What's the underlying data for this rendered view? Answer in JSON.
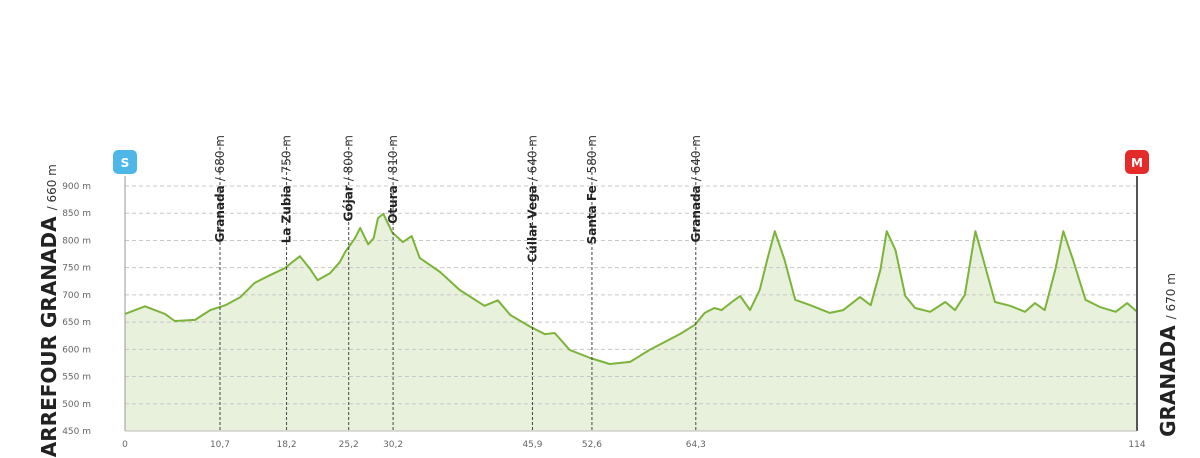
{
  "chart_data": {
    "type": "area",
    "x": [
      0,
      2.25,
      4.5,
      5.6,
      7.9,
      9.6,
      11.3,
      13,
      14.6,
      16.3,
      18,
      18.6,
      19.7,
      20.8,
      21.7,
      23.1,
      24.2,
      24.8,
      25.9,
      26.5,
      27.4,
      28,
      28.5,
      29.1,
      30.1,
      31.3,
      32.3,
      33.2,
      35.5,
      37.7,
      40.5,
      42,
      43.4,
      45.7,
      47.3,
      48.4,
      50.1,
      52.4,
      54.6,
      56.9,
      59.1,
      62.5,
      64.2,
      65.3,
      66.4,
      67.2,
      68.2,
      69.3,
      70.4,
      71.5,
      72.4,
      73.2,
      74.3,
      75.5,
      77.2,
      79.4,
      80.9,
      82.8,
      84,
      85.1,
      85.8,
      86.8,
      87.9,
      89,
      90.7,
      92.4,
      93.5,
      94.6,
      95.8,
      96.7,
      98,
      99.7,
      101.4,
      102.5,
      103.6,
      104.8,
      105.7,
      106.8,
      108.2,
      109.8,
      111.6,
      112.9,
      114
    ],
    "values": [
      665,
      679,
      665,
      652,
      654,
      672,
      681,
      696,
      722,
      736,
      749,
      757,
      771,
      749,
      727,
      740,
      760,
      779,
      804,
      823,
      793,
      804,
      841,
      849,
      815,
      797,
      808,
      768,
      742,
      709,
      680,
      690,
      663,
      641,
      628,
      630,
      599,
      584,
      573,
      577,
      599,
      628,
      645,
      667,
      676,
      672,
      685,
      698,
      672,
      709,
      768,
      817,
      764,
      691,
      681,
      667,
      672,
      696,
      681,
      746,
      817,
      782,
      698,
      676,
      669,
      687,
      672,
      700,
      817,
      764,
      687,
      680,
      669,
      685,
      672,
      746,
      817,
      764,
      691,
      678,
      669,
      685,
      669
    ],
    "color": "#7cb33a",
    "fill": "#e8f1dc",
    "xlim": [
      0,
      114
    ],
    "ylim": [
      450,
      900
    ],
    "xticks": [
      0,
      {
        "value": 10.7,
        "label": "10,7"
      },
      {
        "value": 18.2,
        "label": "18,2"
      },
      {
        "value": 25.2,
        "label": "25,2"
      },
      {
        "value": 30.2,
        "label": "30,2"
      },
      {
        "value": 45.9,
        "label": "45,9"
      },
      {
        "value": 52.6,
        "label": "52,6"
      },
      {
        "value": 64.3,
        "label": "64,3"
      },
      114
    ],
    "yticks": [
      {
        "value": 450,
        "label": "450 m"
      },
      {
        "value": 500,
        "label": "500 m"
      },
      {
        "value": 550,
        "label": "550 m"
      },
      {
        "value": 600,
        "label": "600 m"
      },
      {
        "value": 650,
        "label": "650 m"
      },
      {
        "value": 700,
        "label": "700 m"
      },
      {
        "value": 750,
        "label": "750 m"
      },
      {
        "value": 800,
        "label": "800 m"
      },
      {
        "value": 850,
        "label": "850 m"
      },
      {
        "value": 900,
        "label": "900 m"
      }
    ],
    "grid": true,
    "waypoints": [
      {
        "km": 10.7,
        "name": "Granada",
        "altitude": "/ 680 m"
      },
      {
        "km": 18.2,
        "name": "La Zubia",
        "altitude": "/ 750 m"
      },
      {
        "km": 25.2,
        "name": "Gójar",
        "altitude": "/ 800 m"
      },
      {
        "km": 30.2,
        "name": "Otura",
        "altitude": "/ 810 m"
      },
      {
        "km": 45.9,
        "name": "Cúllar Vega",
        "altitude": "/ 640 m"
      },
      {
        "km": 52.6,
        "name": "Santa Fe",
        "altitude": "/ 580 m"
      },
      {
        "km": 64.3,
        "name": "Granada",
        "altitude": "/ 640 m"
      }
    ],
    "start": {
      "icon": "S",
      "name": "CARREFOUR GRANADA",
      "altitude": "/ 660 m"
    },
    "finish": {
      "icon": "M",
      "name": "GRANADA",
      "altitude": "/ 670 m"
    }
  }
}
